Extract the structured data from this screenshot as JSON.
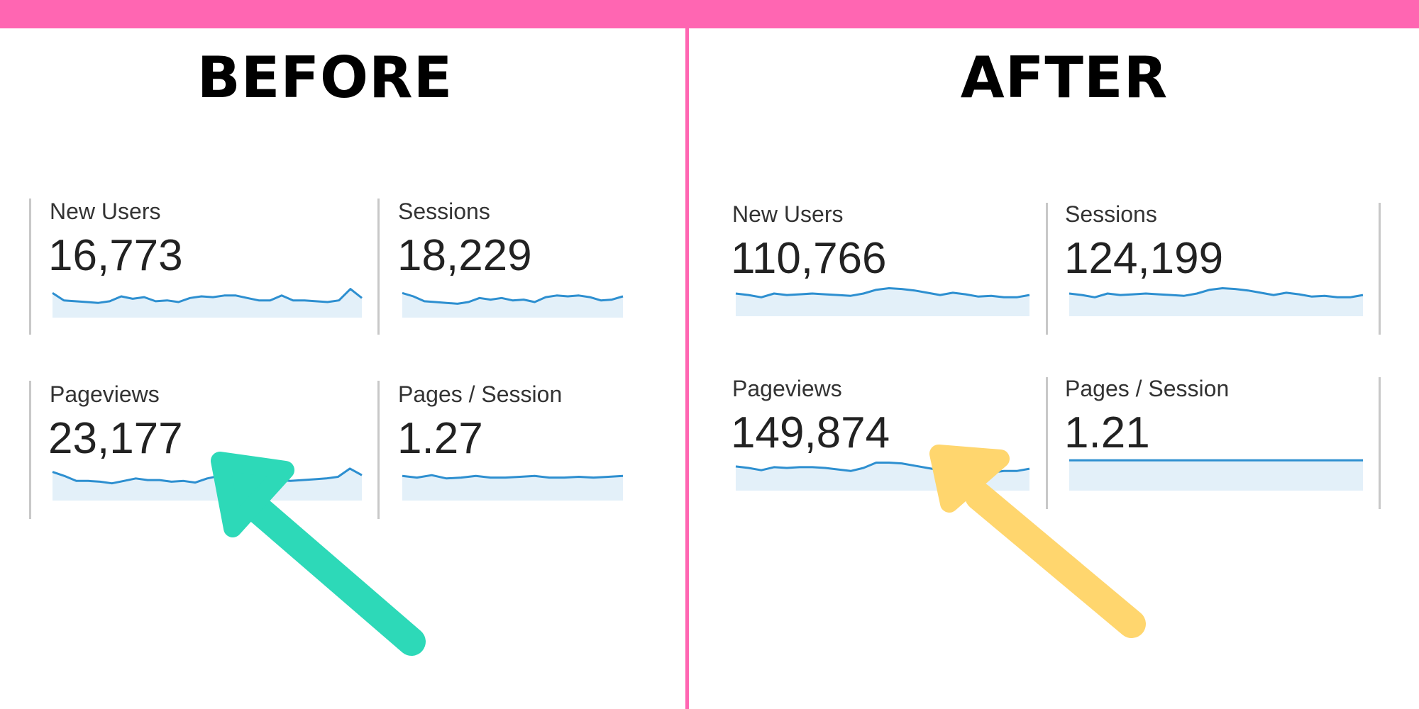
{
  "colors": {
    "banner": "#ff66b2",
    "sparkline_stroke": "#2d8fd0",
    "sparkline_fill": "#e3f0f9",
    "before_arrow": "#2dd9b8",
    "after_arrow": "#ffd66e"
  },
  "before": {
    "heading": "BEFORE",
    "metrics": [
      {
        "label": "New Users",
        "value": "16,773",
        "trend": [
          30,
          21,
          20,
          19,
          18,
          20,
          26,
          23,
          25,
          20,
          21,
          19,
          24,
          26,
          25,
          27,
          27,
          24,
          21,
          21,
          27,
          21,
          21,
          20,
          19,
          21,
          35,
          24
        ]
      },
      {
        "label": "Sessions",
        "value": "18,229",
        "trend": [
          30,
          26,
          20,
          19,
          18,
          17,
          19,
          24,
          22,
          24,
          21,
          22,
          19,
          25,
          27,
          26,
          27,
          25,
          21,
          22,
          26
        ]
      },
      {
        "label": "Pageviews",
        "value": "23,177",
        "trend": [
          35,
          30,
          24,
          24,
          23,
          21,
          24,
          27,
          25,
          25,
          23,
          24,
          22,
          27,
          30,
          29,
          28,
          27,
          26,
          25,
          24,
          25,
          26,
          27,
          29,
          39,
          31
        ]
      },
      {
        "label": "Pages / Session",
        "value": "1.27",
        "trend": [
          30,
          28,
          31,
          27,
          28,
          30,
          28,
          28,
          29,
          30,
          28,
          28,
          29,
          28,
          29,
          30
        ]
      }
    ],
    "arrow_icon": "arrow-up-left-icon"
  },
  "after": {
    "heading": "AFTER",
    "metrics": [
      {
        "label": "New Users",
        "value": "110,766",
        "trend": [
          30,
          28,
          25,
          30,
          28,
          29,
          30,
          29,
          28,
          27,
          30,
          35,
          37,
          36,
          34,
          31,
          28,
          31,
          29,
          26,
          27,
          25,
          25,
          28
        ]
      },
      {
        "label": "Sessions",
        "value": "124,199",
        "trend": [
          30,
          28,
          25,
          30,
          28,
          29,
          30,
          29,
          28,
          27,
          30,
          35,
          37,
          36,
          34,
          31,
          28,
          31,
          29,
          26,
          27,
          25,
          25,
          28
        ]
      },
      {
        "label": "Pageviews",
        "value": "149,874",
        "trend": [
          32,
          30,
          27,
          31,
          30,
          31,
          31,
          30,
          28,
          26,
          30,
          37,
          37,
          36,
          33,
          30,
          27,
          28,
          26,
          24,
          24,
          26,
          26,
          29
        ]
      },
      {
        "label": "Pages / Session",
        "value": "1.21",
        "trend": [
          40,
          40,
          40,
          40,
          40,
          40,
          40,
          40,
          40,
          40,
          40,
          40,
          40,
          40,
          40,
          40
        ]
      }
    ],
    "arrow_icon": "arrow-up-left-icon"
  }
}
